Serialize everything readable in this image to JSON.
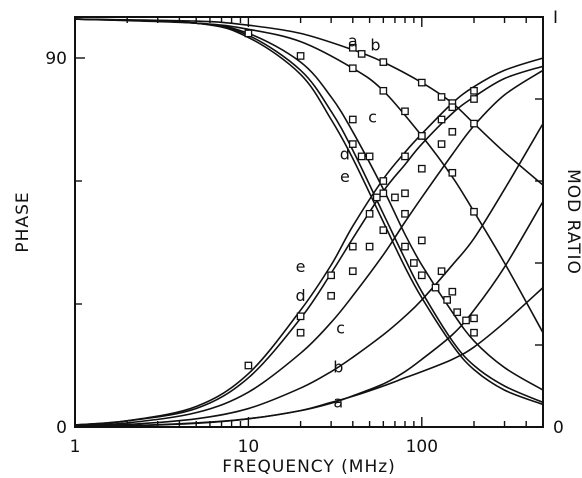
{
  "chart_data": {
    "type": "line",
    "title": "",
    "xlabel": "FREQUENCY (MHz)",
    "ylabel_left": "PHASE",
    "ylabel_right": "MOD RATIO",
    "x_scale": "log",
    "xlim": [
      1,
      500
    ],
    "ylim_left": [
      0,
      100
    ],
    "ylim_right": [
      0,
      1
    ],
    "x_tick_labels": [
      {
        "value": 1,
        "label": "1"
      },
      {
        "value": 10,
        "label": "10"
      },
      {
        "value": 100,
        "label": "100"
      }
    ],
    "y_left_tick_labels": [
      {
        "value": 0,
        "label": "0"
      },
      {
        "value": 90,
        "label": "90"
      }
    ],
    "y_right_tick_labels": [
      {
        "value": 0,
        "label": "0"
      },
      {
        "value": 1,
        "label": "I"
      }
    ],
    "grid": false,
    "marker": "open-square",
    "series": [
      {
        "name": "a",
        "variable": "phase",
        "axis": "left",
        "x": [
          1,
          5,
          10,
          20,
          40,
          60,
          100,
          150,
          200,
          300,
          500
        ],
        "y": [
          99.5,
          99,
          98,
          96,
          92,
          89,
          84,
          79,
          74,
          67,
          59
        ],
        "marker_x": [
          40,
          45,
          60,
          100,
          130,
          150,
          200
        ],
        "marker_y": [
          92.5,
          91,
          89,
          84,
          80.5,
          79,
          74
        ]
      },
      {
        "name": "b",
        "variable": "phase",
        "axis": "left",
        "x": [
          1,
          5,
          10,
          20,
          40,
          60,
          100,
          150,
          200,
          300,
          500
        ],
        "y": [
          99.5,
          98.5,
          97,
          94,
          87.5,
          82,
          71,
          61,
          52.5,
          40,
          23
        ],
        "marker_x": [
          40,
          60,
          80,
          100,
          150,
          200
        ],
        "marker_y": [
          87.5,
          82,
          77,
          71,
          62,
          52.5
        ]
      },
      {
        "name": "c",
        "variable": "phase",
        "axis": "left",
        "x": [
          1,
          5,
          10,
          20,
          30,
          40,
          60,
          80,
          100,
          150,
          200,
          300,
          500
        ],
        "y": [
          99.5,
          98.5,
          96,
          89,
          80.5,
          72,
          58,
          47,
          39.5,
          28,
          21,
          14.5,
          9
        ],
        "marker_x": [
          50,
          60,
          70,
          80,
          100,
          130,
          150,
          200
        ],
        "marker_y": [
          66,
          60,
          56,
          52,
          45.5,
          38,
          33,
          26.5
        ]
      },
      {
        "name": "d",
        "variable": "phase",
        "axis": "left",
        "x": [
          1,
          5,
          10,
          20,
          30,
          40,
          60,
          80,
          100,
          150,
          200,
          300,
          500
        ],
        "y": [
          99.5,
          98.5,
          95.5,
          87,
          77,
          67.5,
          52,
          41,
          33,
          21,
          15,
          10,
          6
        ],
        "marker_x": [
          40,
          45,
          55,
          80,
          90,
          100,
          120,
          140,
          160,
          180,
          200
        ],
        "marker_y": [
          69,
          66,
          56,
          44,
          40,
          37,
          34,
          31,
          28,
          26,
          23
        ]
      },
      {
        "name": "e",
        "variable": "phase",
        "axis": "left",
        "x": [
          1,
          5,
          10,
          20,
          30,
          40,
          60,
          80,
          100,
          150,
          200,
          300,
          500
        ],
        "y": [
          99.5,
          98.5,
          95,
          86,
          75,
          65.5,
          50,
          39,
          31.5,
          20,
          14,
          9,
          5.5
        ],
        "marker_x": [
          10,
          20,
          40
        ],
        "marker_y": [
          96,
          90.5,
          75
        ]
      },
      {
        "name": "e",
        "variable": "mod ratio",
        "axis": "right",
        "x": [
          1,
          2,
          5,
          10,
          20,
          30,
          40,
          60,
          80,
          100,
          150,
          200,
          300,
          500
        ],
        "y": [
          0.005,
          0.015,
          0.05,
          0.13,
          0.285,
          0.395,
          0.49,
          0.605,
          0.67,
          0.715,
          0.79,
          0.83,
          0.87,
          0.9
        ],
        "marker_x": [
          10,
          20,
          30,
          40,
          50,
          60,
          80,
          100,
          130,
          150,
          200
        ],
        "marker_y": [
          0.15,
          0.27,
          0.37,
          0.44,
          0.52,
          0.57,
          0.66,
          0.71,
          0.75,
          0.78,
          0.82
        ]
      },
      {
        "name": "d",
        "variable": "mod ratio",
        "axis": "right",
        "x": [
          1,
          2,
          5,
          10,
          20,
          30,
          40,
          60,
          80,
          100,
          150,
          200,
          300,
          500
        ],
        "y": [
          0.005,
          0.015,
          0.045,
          0.12,
          0.265,
          0.375,
          0.46,
          0.575,
          0.64,
          0.69,
          0.765,
          0.805,
          0.85,
          0.88
        ],
        "marker_x": [
          20,
          30,
          40,
          50,
          60,
          80,
          100,
          130,
          150,
          200
        ],
        "marker_y": [
          0.23,
          0.32,
          0.38,
          0.44,
          0.48,
          0.57,
          0.63,
          0.69,
          0.72,
          0.8
        ]
      },
      {
        "name": "c",
        "variable": "mod ratio",
        "axis": "right",
        "x": [
          1,
          2,
          5,
          10,
          20,
          30,
          40,
          60,
          80,
          100,
          150,
          200,
          300,
          500
        ],
        "y": [
          0.003,
          0.01,
          0.035,
          0.085,
          0.18,
          0.255,
          0.32,
          0.42,
          0.5,
          0.56,
          0.665,
          0.735,
          0.81,
          0.87
        ]
      },
      {
        "name": "b",
        "variable": "mod ratio",
        "axis": "right",
        "x": [
          1,
          2,
          5,
          10,
          20,
          30,
          40,
          60,
          80,
          100,
          150,
          200,
          300,
          500
        ],
        "y": [
          0.002,
          0.006,
          0.02,
          0.045,
          0.095,
          0.135,
          0.17,
          0.225,
          0.27,
          0.31,
          0.395,
          0.46,
          0.58,
          0.74
        ]
      },
      {
        "name": "a",
        "variable": "mod ratio",
        "axis": "right",
        "x": [
          1,
          2,
          5,
          10,
          20,
          30,
          40,
          60,
          80,
          100,
          150,
          200,
          300,
          500
        ],
        "y": [
          0.001,
          0.003,
          0.01,
          0.02,
          0.04,
          0.06,
          0.075,
          0.1,
          0.12,
          0.135,
          0.165,
          0.195,
          0.255,
          0.34
        ]
      },
      {
        "name": "",
        "variable": "mod ratio",
        "axis": "right",
        "x": [
          1,
          2,
          5,
          10,
          20,
          30,
          40,
          60,
          80,
          100,
          150,
          200,
          300,
          500
        ],
        "y": [
          0.001,
          0.003,
          0.009,
          0.02,
          0.04,
          0.058,
          0.076,
          0.105,
          0.135,
          0.165,
          0.225,
          0.285,
          0.39,
          0.55
        ]
      }
    ],
    "annotations": [
      {
        "text": "a",
        "x": 40,
        "y": 94,
        "axis": "left"
      },
      {
        "text": "b",
        "x": 54,
        "y": 93,
        "axis": "left"
      },
      {
        "text": "c",
        "x": 52,
        "y": 75.5,
        "axis": "left"
      },
      {
        "text": "d",
        "x": 36,
        "y": 66.5,
        "axis": "left"
      },
      {
        "text": "e",
        "x": 36,
        "y": 61,
        "axis": "left"
      },
      {
        "text": "e",
        "x": 20,
        "y": 39,
        "axis": "left"
      },
      {
        "text": "d",
        "x": 20,
        "y": 32,
        "axis": "left"
      },
      {
        "text": "c",
        "x": 34,
        "y": 24,
        "axis": "left"
      },
      {
        "text": "b",
        "x": 33,
        "y": 14.5,
        "axis": "left"
      },
      {
        "text": "a",
        "x": 33,
        "y": 6,
        "axis": "left"
      }
    ]
  }
}
